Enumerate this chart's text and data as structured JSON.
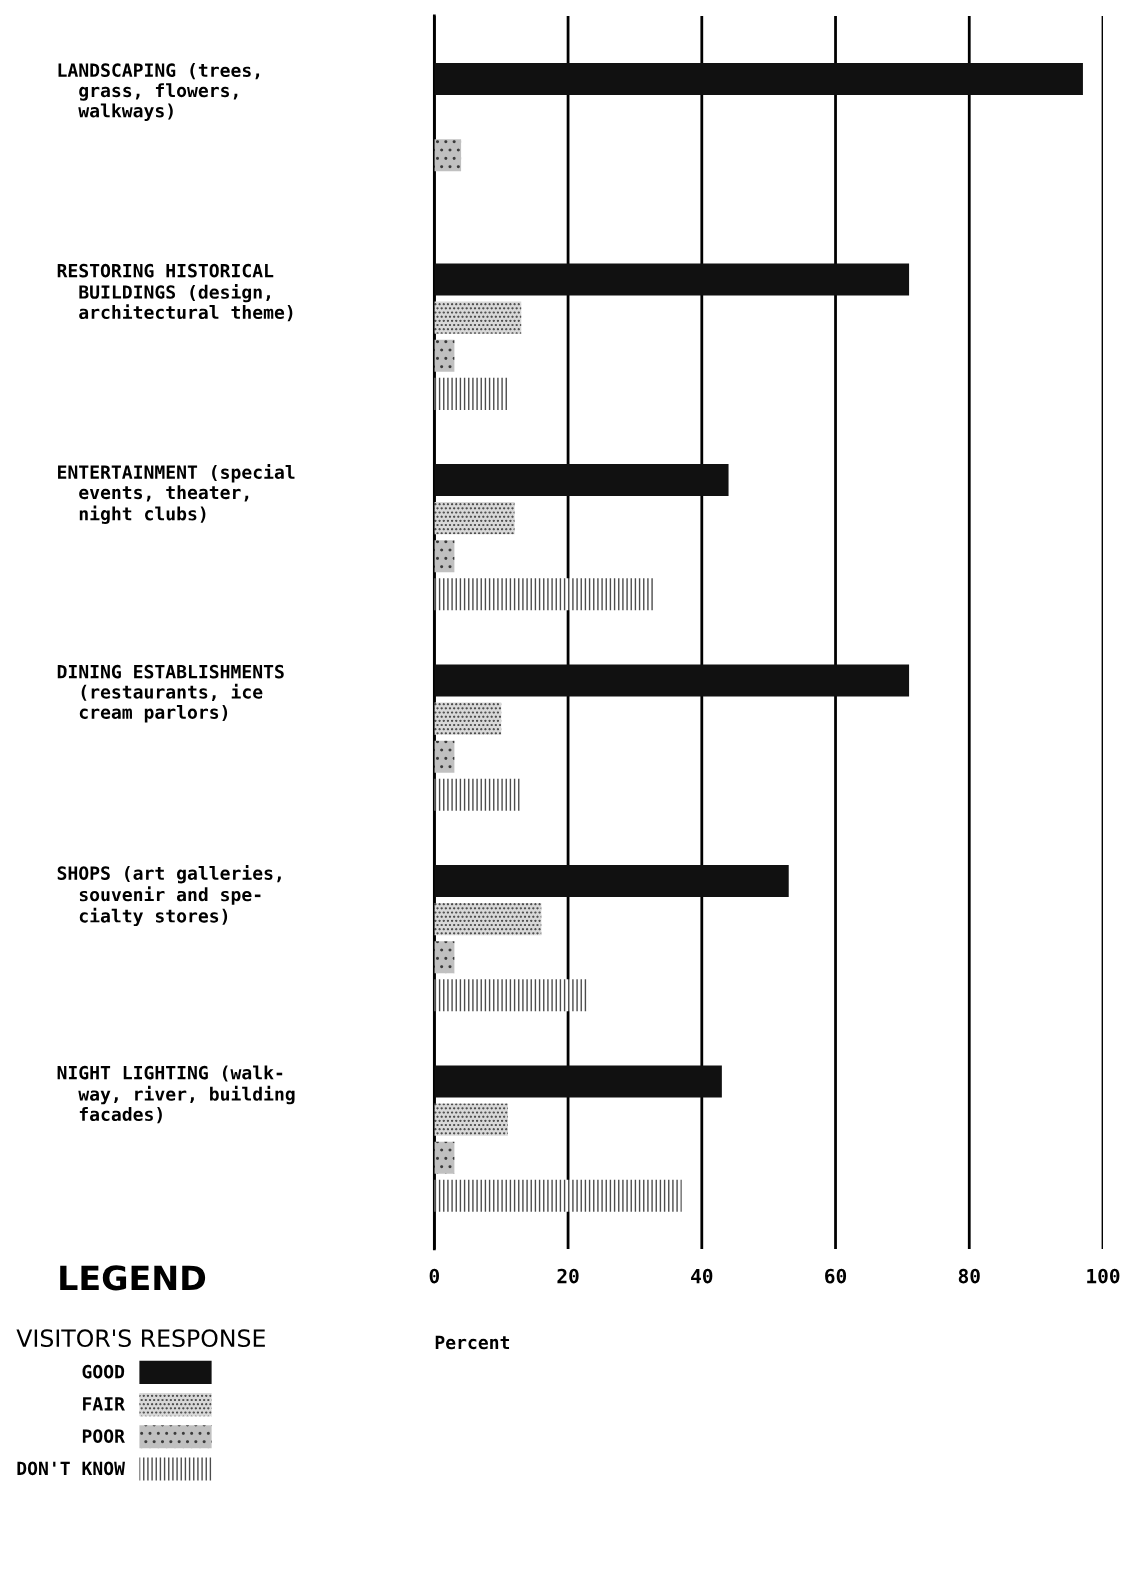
{
  "chart_data": {
    "type": "bar",
    "orientation": "horizontal",
    "xlabel": "Percent",
    "legend_title": "VISITOR'S RESPONSE",
    "annotations": [
      "LEGEND"
    ],
    "categories": [
      "LANDSCAPING (trees,\n  grass, flowers,\n  walkways)",
      "RESTORING HISTORICAL\n  BUILDINGS (design,\n  architectural theme)",
      "ENTERTAINMENT (special\n  events, theater,\n  night clubs)",
      "DINING ESTABLISHMENTS\n  (restaurants, ice\n  cream parlors)",
      "SHOPS (art galleries,\n  souvenir and spe-\n  cialty stores)",
      "NIGHT LIGHTING (walk-\n  way, river, building\n  facades)"
    ],
    "series": [
      {
        "name": "GOOD",
        "color": "#111111",
        "values": [
          97,
          71,
          44,
          71,
          53,
          43
        ]
      },
      {
        "name": "FAIR",
        "color": "#d8d8d8",
        "values": [
          0,
          13,
          12,
          10,
          16,
          11
        ]
      },
      {
        "name": "POOR",
        "color": "#c0c0c0",
        "values": [
          4,
          3,
          3,
          3,
          3,
          3
        ]
      },
      {
        "name": "DON'T KNOW",
        "color": "#ffffff",
        "values": [
          0,
          11,
          33,
          13,
          23,
          37
        ]
      }
    ],
    "xlim": [
      0,
      100
    ],
    "xticks": [
      0,
      20,
      40,
      60,
      80,
      100
    ],
    "grid": "x",
    "legend": "bottom left"
  }
}
